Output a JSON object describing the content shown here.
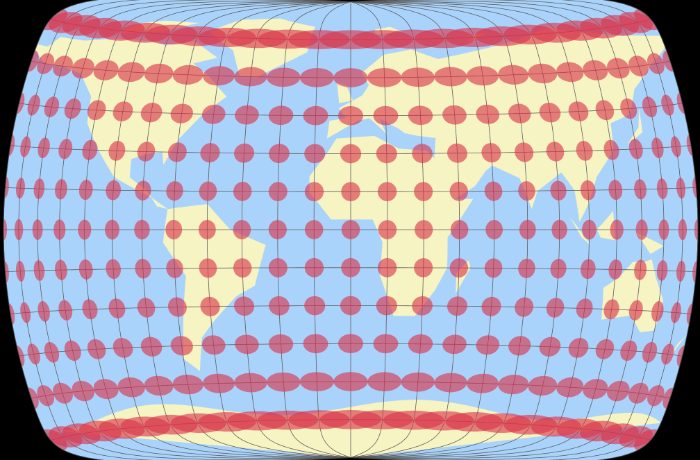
{
  "map": {
    "projection_center_longitude": 0,
    "graticule_step_degrees": 15,
    "tissot_radius_degrees": 3.8,
    "colors": {
      "background": "#000000",
      "ocean": "#aad3fb",
      "land": "#f6f4c2",
      "graticule": "#5a5a5a",
      "tissot": "#d8344a"
    }
  }
}
